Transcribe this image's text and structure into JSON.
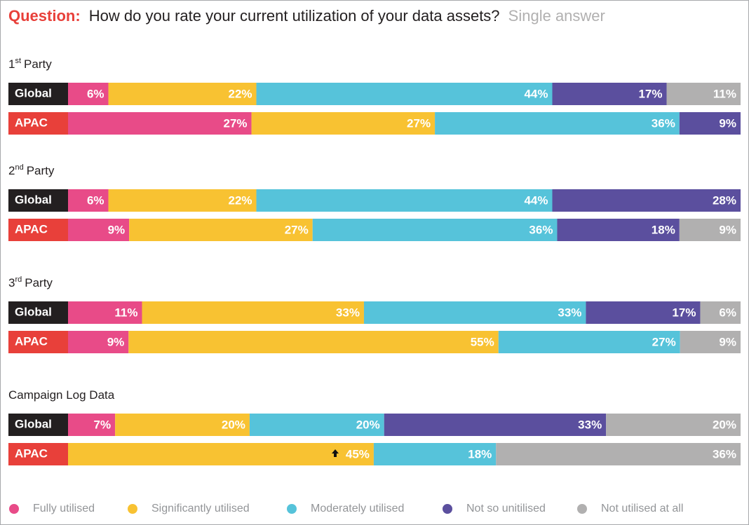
{
  "chart_data": {
    "type": "stacked-bar",
    "question_label": "Question:",
    "title": "How do you rate your current utilization of your data assets?",
    "subtitle": "Single answer",
    "series": [
      {
        "name": "Fully utilised",
        "color": "#e84b88"
      },
      {
        "name": "Significantly utilised",
        "color": "#f8c232"
      },
      {
        "name": "Moderately utilised",
        "color": "#56c3da"
      },
      {
        "name": "Not so unitilised",
        "color": "#5b4f9e"
      },
      {
        "name": "Not utilised at all",
        "color": "#b1b0b0"
      }
    ],
    "groups": [
      {
        "ordinal": "1",
        "ordinal_suffix": "st",
        "name": "Party",
        "rows": [
          {
            "name": "Global",
            "label_color": "#231f20",
            "values": [
              6,
              22,
              44,
              17,
              11
            ],
            "value_labels": [
              "6%",
              "22%",
              "44%",
              "17%",
              "11%"
            ]
          },
          {
            "name": "APAC",
            "label_color": "#e8403a",
            "values": [
              27,
              27,
              36,
              9,
              null
            ],
            "value_labels": [
              "27%",
              "27%",
              "36%",
              "9%",
              null
            ]
          }
        ]
      },
      {
        "ordinal": "2",
        "ordinal_suffix": "nd",
        "name": "Party",
        "rows": [
          {
            "name": "Global",
            "label_color": "#231f20",
            "values": [
              6,
              22,
              44,
              28,
              null
            ],
            "value_labels": [
              "6%",
              "22%",
              "44%",
              "28%",
              null
            ]
          },
          {
            "name": "APAC",
            "label_color": "#e8403a",
            "values": [
              9,
              27,
              36,
              18,
              9
            ],
            "value_labels": [
              "9%",
              "27%",
              "36%",
              "18%",
              "9%"
            ]
          }
        ]
      },
      {
        "ordinal": "3",
        "ordinal_suffix": "rd",
        "name": "Party",
        "rows": [
          {
            "name": "Global",
            "label_color": "#231f20",
            "values": [
              11,
              33,
              33,
              17,
              6
            ],
            "value_labels": [
              "11%",
              "33%",
              "33%",
              "17%",
              "6%"
            ]
          },
          {
            "name": "APAC",
            "label_color": "#e8403a",
            "values": [
              9,
              55,
              27,
              null,
              9
            ],
            "value_labels": [
              "9%",
              "55%",
              "27%",
              null,
              "9%"
            ]
          }
        ]
      },
      {
        "name": "Campaign Log Data",
        "rows": [
          {
            "name": "Global",
            "label_color": "#231f20",
            "values": [
              7,
              20,
              20,
              33,
              20
            ],
            "value_labels": [
              "7%",
              "20%",
              "20%",
              "33%",
              "20%"
            ]
          },
          {
            "name": "APAC",
            "label_color": "#e8403a",
            "values": [
              null,
              45,
              18,
              null,
              36
            ],
            "value_labels": [
              null,
              "45%",
              "18%",
              null,
              "36%"
            ]
          }
        ]
      }
    ]
  }
}
